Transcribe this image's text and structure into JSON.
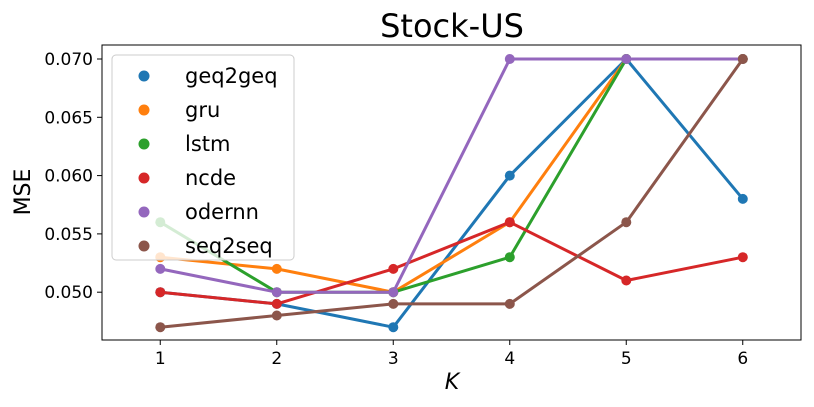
{
  "chart_data": {
    "type": "line",
    "title": "Stock-US",
    "xlabel": "K",
    "ylabel": "MSE",
    "x": [
      1,
      2,
      3,
      4,
      5,
      6
    ],
    "xticks": [
      "1",
      "2",
      "3",
      "4",
      "5",
      "6"
    ],
    "yticks": [
      "0.050",
      "0.055",
      "0.060",
      "0.065",
      "0.070"
    ],
    "xlim": [
      0.5,
      6.5
    ],
    "ylim": [
      0.0459,
      0.0712
    ],
    "grid": false,
    "legend_position": "upper-left",
    "series": [
      {
        "name": "geq2geq",
        "color": "#1f77b4",
        "values": [
          0.05,
          0.049,
          0.047,
          0.06,
          0.07,
          0.058
        ]
      },
      {
        "name": "gru",
        "color": "#ff7f0e",
        "values": [
          0.053,
          0.052,
          0.05,
          0.056,
          0.07,
          0.07
        ]
      },
      {
        "name": "lstm",
        "color": "#2ca02c",
        "values": [
          0.056,
          0.05,
          0.05,
          0.053,
          0.07,
          0.07
        ]
      },
      {
        "name": "ncde",
        "color": "#d62728",
        "values": [
          0.05,
          0.049,
          0.052,
          0.056,
          0.051,
          0.053
        ]
      },
      {
        "name": "odernn",
        "color": "#9467bd",
        "values": [
          0.052,
          0.05,
          0.05,
          0.07,
          0.07,
          0.07
        ]
      },
      {
        "name": "seq2seq",
        "color": "#8c564b",
        "values": [
          0.047,
          0.048,
          0.049,
          0.049,
          0.056,
          0.07
        ]
      }
    ]
  }
}
